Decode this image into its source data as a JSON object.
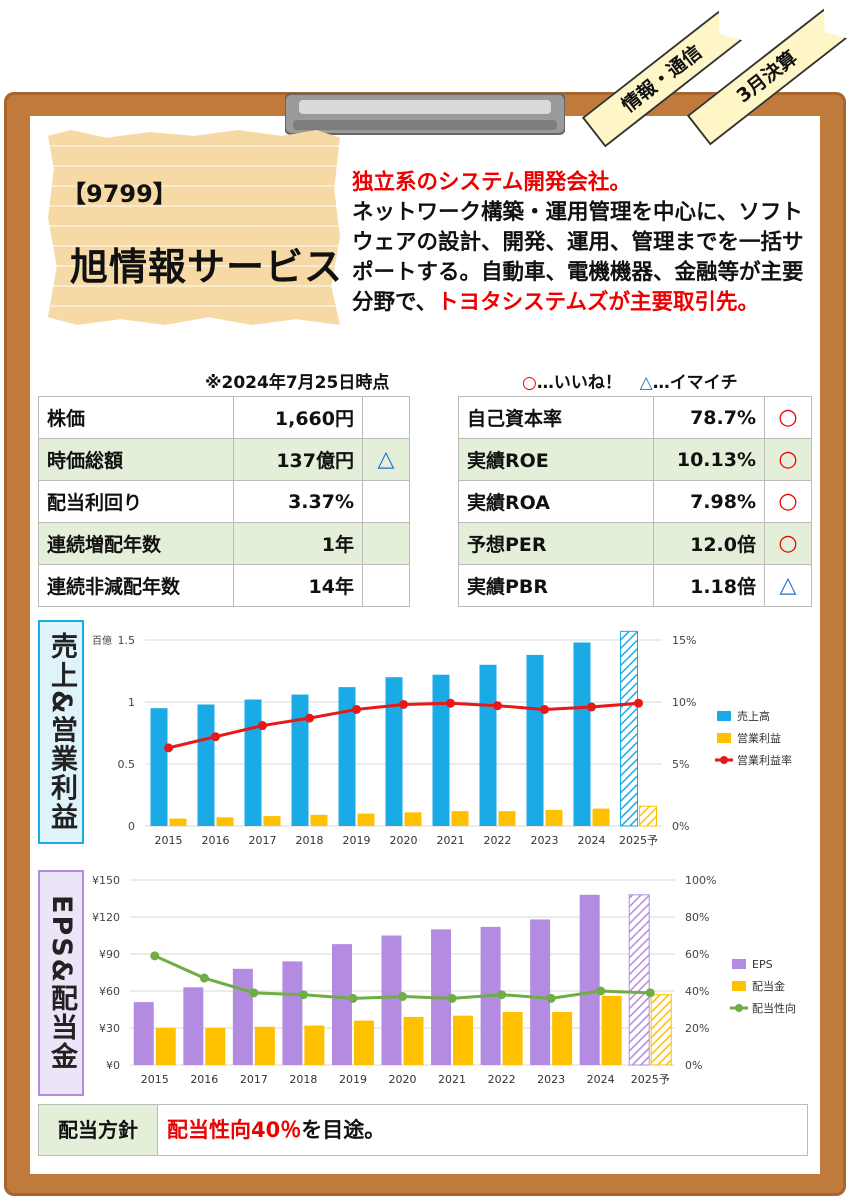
{
  "header": {
    "stock_code": "【9799】",
    "company_name": "旭情報サービス",
    "ribbon_sector": "情報・通信",
    "ribbon_fiscal": "3月決算"
  },
  "description": {
    "line1": "独立系のシステム開発会社。",
    "body": "ネットワーク構築・運用管理を中心に、ソフトウェアの設計、開発、運用、管理までを一括サポートする。自動車、電機機器、金融等が主要分野で、",
    "highlight": "トヨタシステムズが主要取引先。"
  },
  "as_of": "※2024年7月25日時点",
  "legend": {
    "good_mark": "○",
    "good_text": "…いいね！",
    "bad_mark": "△",
    "bad_text": "…イマイチ"
  },
  "left_metrics": [
    {
      "label": "株価",
      "value": "1,660円",
      "mark": ""
    },
    {
      "label": "時価総額",
      "value": "137億円",
      "mark": "△"
    },
    {
      "label": "配当利回り",
      "value": "3.37%",
      "mark": ""
    },
    {
      "label": "連続増配年数",
      "value": "1年",
      "mark": ""
    },
    {
      "label": "連続非減配年数",
      "value": "14年",
      "mark": ""
    }
  ],
  "right_metrics": [
    {
      "label": "自己資本率",
      "value": "78.7%",
      "mark": "○"
    },
    {
      "label": "実績ROE",
      "value": "10.13%",
      "mark": "○"
    },
    {
      "label": "実績ROA",
      "value": "7.98%",
      "mark": "○"
    },
    {
      "label": "予想PER",
      "value": "12.0倍",
      "mark": "○"
    },
    {
      "label": "実績PBR",
      "value": "1.18倍",
      "mark": "△"
    }
  ],
  "chart1_label": "売上&営業利益",
  "chart2_label": "EPS&配当金",
  "chart_data": [
    {
      "type": "bar",
      "categories": [
        "2015",
        "2016",
        "2017",
        "2018",
        "2019",
        "2020",
        "2021",
        "2022",
        "2023",
        "2024",
        "2025予"
      ],
      "ylabel": "百億",
      "ylim": [
        0,
        1.5
      ],
      "yticks": [
        "0",
        "0.5",
        "1",
        "1.5"
      ],
      "y2lim": [
        0,
        15
      ],
      "y2ticks": [
        "0%",
        "5%",
        "10%",
        "15%"
      ],
      "series": [
        {
          "name": "売上高",
          "color": "#1aabe6",
          "values": [
            0.95,
            0.98,
            1.02,
            1.06,
            1.12,
            1.2,
            1.22,
            1.3,
            1.38,
            1.48,
            1.57
          ]
        },
        {
          "name": "営業利益",
          "color": "#ffc000",
          "values": [
            0.06,
            0.07,
            0.08,
            0.09,
            0.1,
            0.11,
            0.12,
            0.12,
            0.13,
            0.14,
            0.16
          ]
        },
        {
          "name": "営業利益率",
          "color": "#e81818",
          "type": "line",
          "axis": "right",
          "values": [
            6.3,
            7.2,
            8.1,
            8.7,
            9.4,
            9.8,
            9.9,
            9.7,
            9.4,
            9.6,
            9.9
          ]
        }
      ]
    },
    {
      "type": "bar",
      "categories": [
        "2015",
        "2016",
        "2017",
        "2018",
        "2019",
        "2020",
        "2021",
        "2022",
        "2023",
        "2024",
        "2025予"
      ],
      "ylim": [
        0,
        150
      ],
      "yticks": [
        "¥0",
        "¥30",
        "¥60",
        "¥90",
        "¥120",
        "¥150"
      ],
      "y2lim": [
        0,
        100
      ],
      "y2ticks": [
        "0%",
        "20%",
        "40%",
        "60%",
        "80%",
        "100%"
      ],
      "series": [
        {
          "name": "EPS",
          "color": "#b38be0",
          "values": [
            51,
            63,
            78,
            84,
            98,
            105,
            110,
            112,
            118,
            138,
            138
          ]
        },
        {
          "name": "配当金",
          "color": "#ffc000",
          "values": [
            30,
            30,
            31,
            32,
            36,
            39,
            40,
            43,
            43,
            56,
            57
          ]
        },
        {
          "name": "配当性向",
          "color": "#70ad47",
          "type": "line",
          "axis": "right",
          "values": [
            59,
            47,
            39,
            38,
            36,
            37,
            36,
            38,
            36,
            40,
            39
          ]
        }
      ]
    }
  ],
  "policy": {
    "label": "配当方針",
    "highlight": "配当性向40％",
    "rest": "を目途。"
  },
  "colors": {
    "board": "#c07a3c",
    "note": "#f7d9a6",
    "table_alt": "#e3efd8",
    "accent_red": "#e00000",
    "accent_blue": "#1a6fd1"
  }
}
